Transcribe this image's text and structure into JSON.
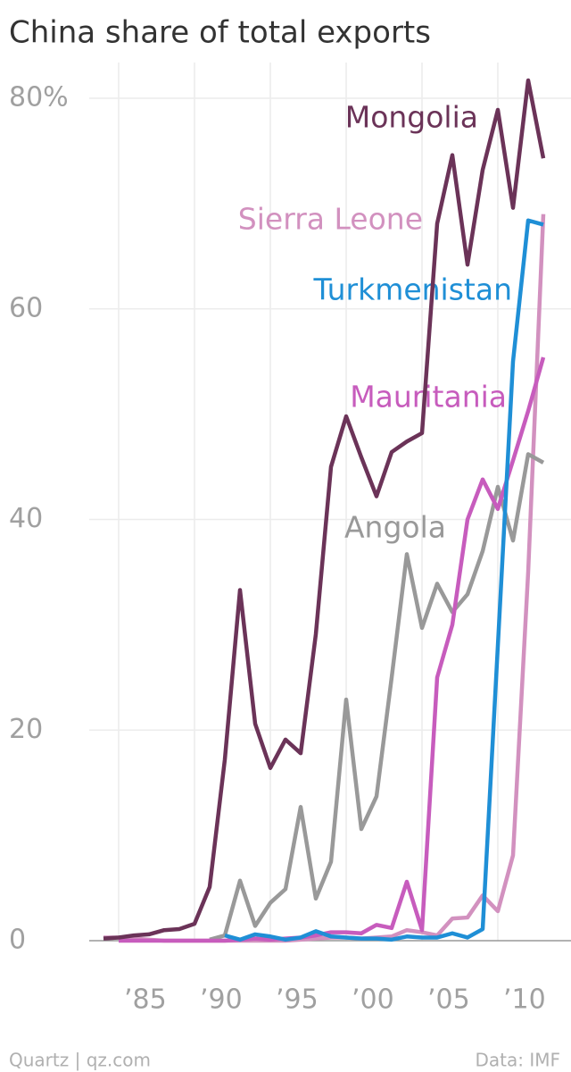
{
  "chart_data": {
    "type": "line",
    "title": "China share of total exports",
    "x": [
      1984,
      1985,
      1986,
      1987,
      1988,
      1989,
      1990,
      1991,
      1992,
      1993,
      1994,
      1995,
      1996,
      1997,
      1998,
      1999,
      2000,
      2001,
      2002,
      2003,
      2004,
      2005,
      2006,
      2007,
      2008,
      2009,
      2010,
      2011,
      2012,
      2013
    ],
    "series": [
      {
        "name": "Sierra Leone",
        "color": "#d291bf",
        "values": [
          0.3,
          0.3,
          0.2,
          0.1,
          0,
          0,
          0,
          0,
          0,
          0,
          0,
          0,
          0,
          0.1,
          0.2,
          0.3,
          0.3,
          0.2,
          0.3,
          0.4,
          1.0,
          0.8,
          0.5,
          2.1,
          2.2,
          4.3,
          2.8,
          8.1,
          35,
          69
        ]
      },
      {
        "name": "Angola",
        "color": "#999999",
        "values": [
          null,
          null,
          null,
          null,
          null,
          null,
          null,
          0.1,
          0.5,
          5.7,
          1.4,
          3.6,
          4.9,
          12.7,
          4.0,
          7.5,
          22.9,
          10.6,
          13.7,
          25,
          36.7,
          29.7,
          33.9,
          31.2,
          32.9,
          37,
          43.1,
          38,
          46.2,
          45.4
        ]
      },
      {
        "name": "Mauritania",
        "color": "#c75cbd",
        "values": [
          null,
          0,
          0,
          0,
          0,
          0,
          0,
          0,
          0,
          0.1,
          0.2,
          0.1,
          0.2,
          0.3,
          0.5,
          0.8,
          0.8,
          0.7,
          1.5,
          1.2,
          5.6,
          1.0,
          25,
          30,
          40,
          43.8,
          41,
          45.6,
          50.3,
          55.4
        ]
      },
      {
        "name": "Turkmenistan",
        "color": "#1f8fd6",
        "values": [
          null,
          null,
          null,
          null,
          null,
          null,
          null,
          null,
          0.5,
          0.1,
          0.6,
          0.4,
          0.1,
          0.3,
          0.9,
          0.4,
          0.3,
          0.2,
          0.2,
          0.1,
          0.4,
          0.3,
          0.3,
          0.7,
          0.3,
          1.1,
          28,
          55,
          68.4,
          68
        ]
      },
      {
        "name": "Mongolia",
        "color": "#6b3358",
        "values": [
          0.2,
          0.3,
          0.5,
          0.6,
          1.0,
          1.1,
          1.6,
          5.1,
          17.2,
          33.3,
          20.6,
          16.4,
          19.1,
          17.8,
          29.1,
          45,
          49.8,
          45.9,
          42.2,
          46.4,
          47.4,
          48.2,
          68.1,
          74.6,
          64.2,
          73.2,
          78.9,
          69.6,
          81.7,
          74.3
        ]
      }
    ],
    "xlim": [
      1984,
      2013
    ],
    "xticks": [
      {
        "value": 1985,
        "label": "’85"
      },
      {
        "value": 1990,
        "label": "’90"
      },
      {
        "value": 1995,
        "label": "’95"
      },
      {
        "value": 2000,
        "label": "’00"
      },
      {
        "value": 2005,
        "label": "’05"
      },
      {
        "value": 2010,
        "label": "’10"
      }
    ],
    "ylim": [
      0,
      80
    ],
    "yticks": [
      0,
      20,
      40,
      60,
      {
        "value": 80,
        "label": "80%"
      }
    ],
    "grid": true,
    "source": "Data: IMF",
    "credit": "Quartz | qz.com"
  }
}
